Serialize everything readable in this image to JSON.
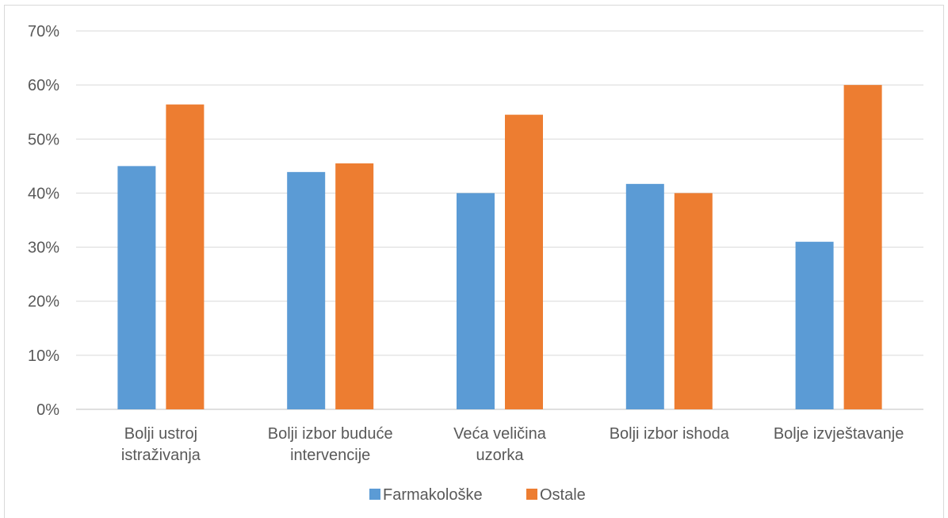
{
  "chart_data": {
    "type": "bar",
    "categories": [
      [
        "Bolji ustroj",
        "istraživanja"
      ],
      [
        "Bolji izbor buduće",
        "intervencije"
      ],
      [
        "Veća veličina",
        "uzorka"
      ],
      [
        "Bolji izbor ishoda"
      ],
      [
        "Bolje izvještavanje"
      ]
    ],
    "series": [
      {
        "name": "Farmakološke",
        "color": "#5b9bd5",
        "values": [
          45,
          43.9,
          40,
          41.7,
          31
        ]
      },
      {
        "name": "Ostale",
        "color": "#ed7d31",
        "values": [
          56.4,
          45.5,
          54.5,
          40,
          60
        ]
      }
    ],
    "ylim": [
      0,
      70
    ],
    "yticks": [
      "0%",
      "10%",
      "20%",
      "30%",
      "40%",
      "50%",
      "60%",
      "70%"
    ],
    "grid": true,
    "legend_position": "bottom",
    "title": "",
    "xlabel": "",
    "ylabel": ""
  }
}
